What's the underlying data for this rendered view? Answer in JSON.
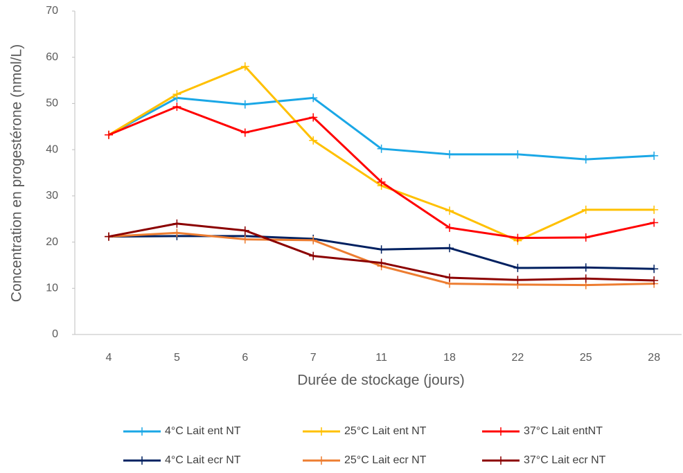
{
  "chart_data": {
    "type": "line",
    "x_label": "Durée de stockage (jours)",
    "y_label": "Concentration en progestérone (nmol/L)",
    "categories": [
      "4",
      "5",
      "6",
      "7",
      "11",
      "18",
      "22",
      "25",
      "28"
    ],
    "ylim": [
      0,
      70
    ],
    "yticks": [
      0,
      10,
      20,
      30,
      40,
      50,
      60,
      70
    ],
    "grid": false,
    "legend": "bottom",
    "series": [
      {
        "name": "4°C Lait ent NT",
        "color": "#1aa7e6",
        "values": [
          43.2,
          51.2,
          49.8,
          51.2,
          40.2,
          39.0,
          39.0,
          37.9,
          38.7
        ]
      },
      {
        "name": "25°C Lait ent NT",
        "color": "#ffc000",
        "values": [
          43.2,
          52.0,
          58.0,
          42.0,
          32.2,
          26.8,
          20.3,
          27.0,
          27.0
        ]
      },
      {
        "name": "37°C Lait entNT",
        "color": "#ff0000",
        "values": [
          43.2,
          49.3,
          43.7,
          47.0,
          33.0,
          23.1,
          20.9,
          21.0,
          24.2
        ]
      },
      {
        "name": "4°C Lait ecr NT",
        "color": "#002060",
        "values": [
          21.2,
          21.3,
          21.3,
          20.7,
          18.4,
          18.7,
          14.4,
          14.5,
          14.2
        ]
      },
      {
        "name": "25°C Lait ecr NT",
        "color": "#ed7d31",
        "values": [
          21.2,
          22.0,
          20.6,
          20.4,
          14.8,
          11.0,
          10.8,
          10.7,
          11.0
        ]
      },
      {
        "name": "37°C Lait ecr NT",
        "color": "#8b0000",
        "values": [
          21.2,
          24.0,
          22.5,
          17.0,
          15.5,
          12.3,
          11.8,
          12.1,
          11.7
        ]
      }
    ]
  }
}
